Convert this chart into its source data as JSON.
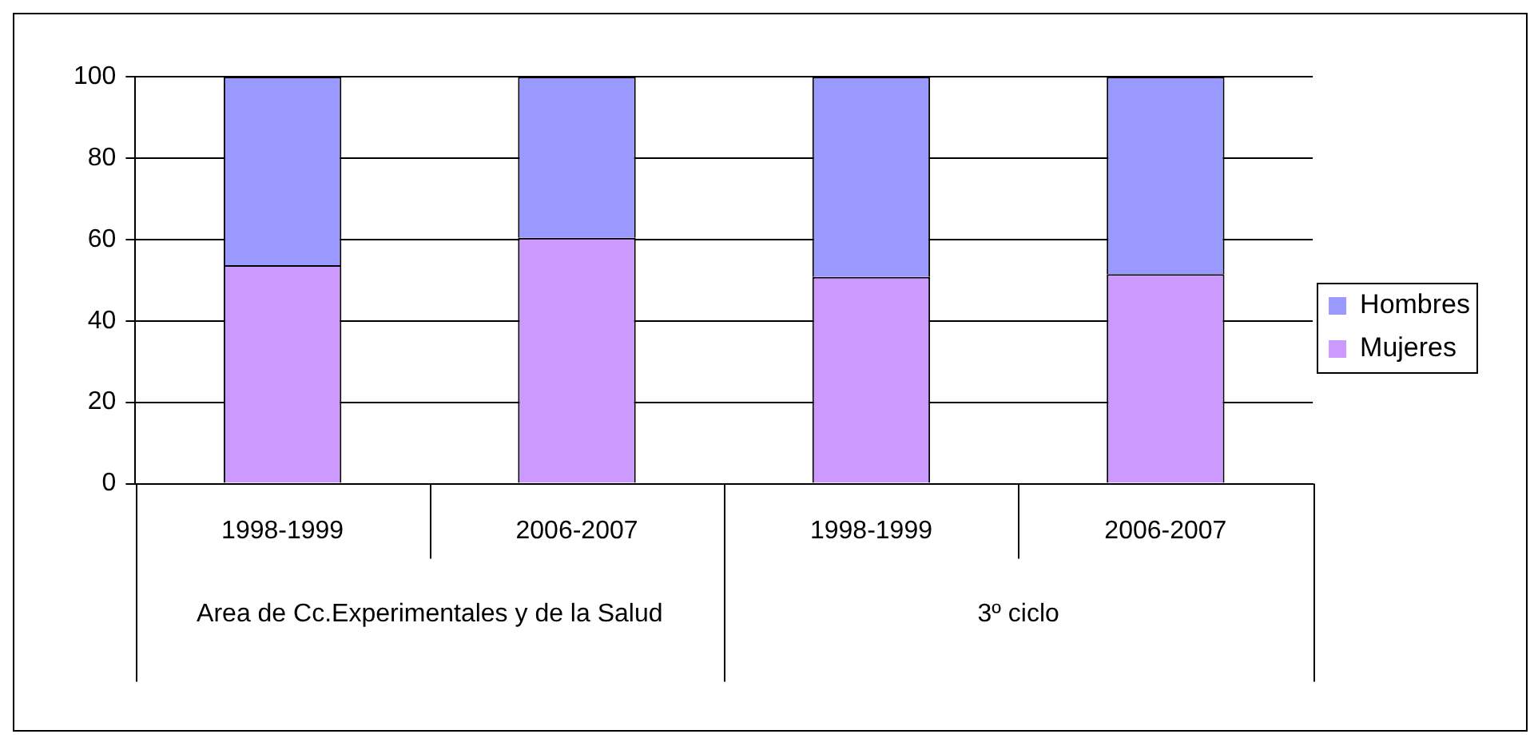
{
  "chart_data": {
    "type": "bar",
    "stacked": true,
    "categories": [
      "1998-1999",
      "2006-2007",
      "1998-1999",
      "2006-2007"
    ],
    "series": [
      {
        "name": "Mujeres",
        "color": "#cc99ff",
        "values": [
          53.7,
          60.4,
          50.8,
          51.5
        ]
      },
      {
        "name": "Hombres",
        "color": "#9999ff",
        "values": [
          46.3,
          39.6,
          49.2,
          48.5
        ]
      }
    ],
    "ylim": [
      0,
      100
    ],
    "yticks": [
      0,
      20,
      40,
      60,
      80,
      100
    ],
    "grid": "y",
    "legend": "right",
    "annotations": [
      "Area de Cc.Experimentales y de la Salud",
      "3º ciclo"
    ]
  }
}
